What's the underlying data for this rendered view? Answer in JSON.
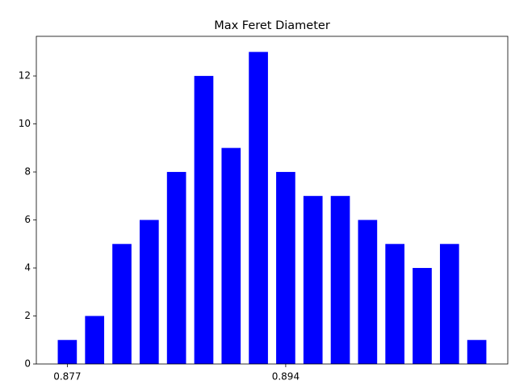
{
  "chart_data": {
    "type": "bar",
    "title": "Max Feret Diameter",
    "categories": [
      "0.877",
      null,
      null,
      null,
      null,
      null,
      null,
      null,
      "0.894",
      null,
      null,
      null,
      null,
      null,
      null,
      null
    ],
    "values": [
      1,
      2,
      5,
      6,
      8,
      12,
      9,
      13,
      8,
      7,
      7,
      6,
      5,
      4,
      5,
      1
    ],
    "color": "#0000ff",
    "ylim": [
      0,
      13.65
    ],
    "yticks": [
      0,
      2,
      4,
      6,
      8,
      10,
      12
    ],
    "grid": false
  }
}
